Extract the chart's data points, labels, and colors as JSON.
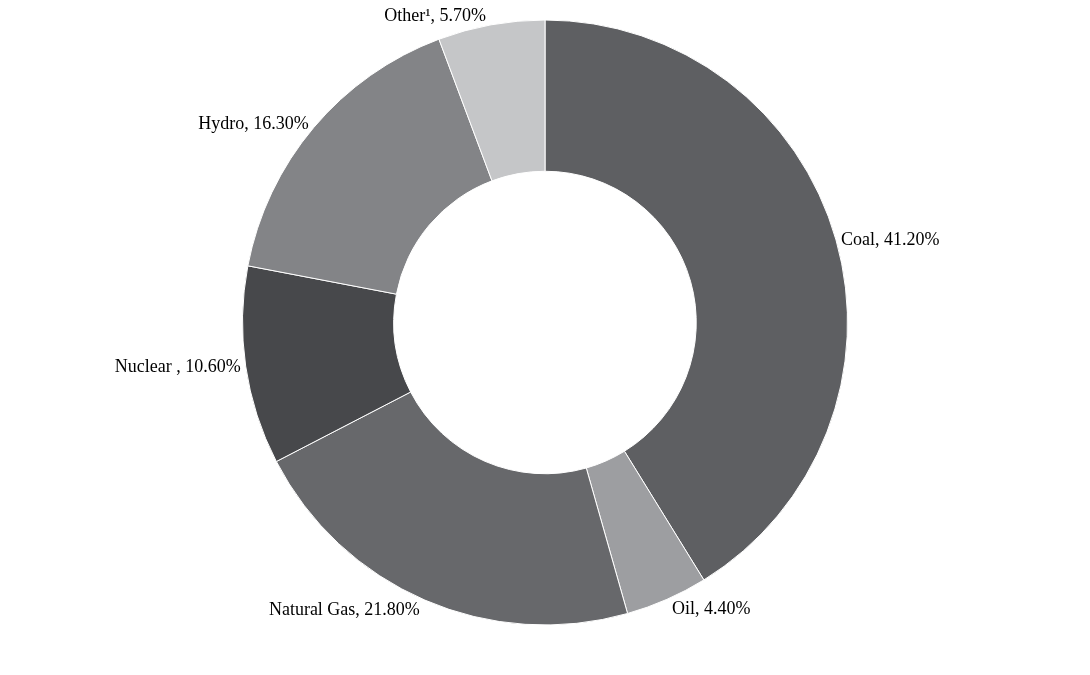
{
  "chart_data": {
    "type": "donut",
    "categories": [
      "Coal",
      "Oil",
      "Natural Gas",
      "Nuclear ",
      "Hydro",
      "Other¹"
    ],
    "values": [
      41.2,
      4.4,
      21.8,
      10.6,
      16.3,
      5.7
    ],
    "colors": [
      "#5e5f62",
      "#9d9ea1",
      "#67686b",
      "#47484b",
      "#838487",
      "#c5c6c8"
    ],
    "value_labels": [
      "41.20%",
      "4.40%",
      "21.80%",
      "10.60%",
      "16.30%",
      "5.70%"
    ],
    "legend": false
  }
}
